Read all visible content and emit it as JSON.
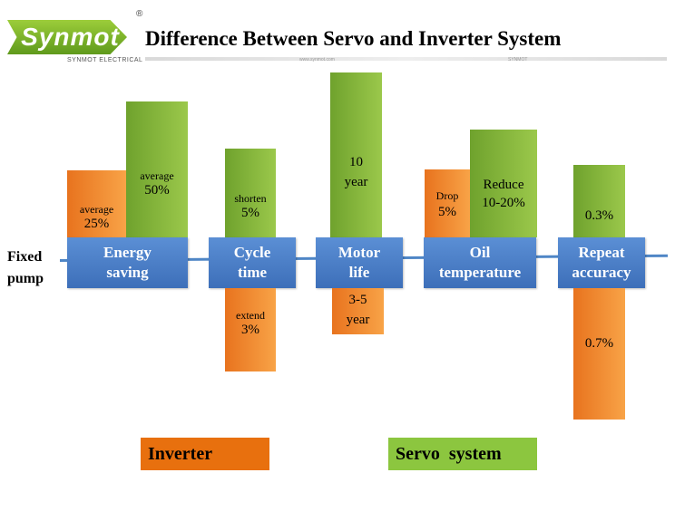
{
  "header": {
    "logo_text": "Synmot",
    "logo_reg": "®",
    "logo_subtitle": "SYNMOT ELECTRICAL",
    "title": "Difference Between Servo and Inverter System",
    "rule_mark_1": "www.synmot.com",
    "rule_mark_2": "SYNMOT"
  },
  "baseline_label": [
    "Fixed",
    "pump"
  ],
  "colors": {
    "inverter": "#e8700e",
    "servo": "#8cc63f",
    "category": "#4a7fc7",
    "line": "#4f86c6"
  },
  "categories": [
    {
      "label": [
        "Energy",
        "saving"
      ],
      "inverter": {
        "line1": "average",
        "line2": "25%",
        "direction": "up"
      },
      "servo": {
        "line1": "average",
        "line2": "50%",
        "direction": "up"
      }
    },
    {
      "label": [
        "Cycle",
        "time"
      ],
      "servo": {
        "line1": "shorten",
        "line2": "5%",
        "direction": "up"
      },
      "inverter": {
        "line1": "extend",
        "line2": "3%",
        "direction": "down"
      }
    },
    {
      "label": [
        "Motor",
        "life"
      ],
      "servo": {
        "line1": "10",
        "line2": "year",
        "direction": "up"
      },
      "inverter": {
        "line1": "3-5",
        "line2": "year",
        "direction": "down"
      }
    },
    {
      "label": [
        "Oil",
        "temperature"
      ],
      "inverter": {
        "line1": "Drop",
        "line2": "5%",
        "direction": "up"
      },
      "servo": {
        "line1": "Reduce",
        "line2": "10-20%",
        "direction": "up"
      }
    },
    {
      "label": [
        "Repeat",
        "accuracy"
      ],
      "servo": {
        "line1": "0.3%",
        "direction": "up"
      },
      "inverter": {
        "line1": "0.7%",
        "direction": "down"
      }
    }
  ],
  "legend": {
    "inverter": "Inverter",
    "servo": "Servo  system"
  }
}
